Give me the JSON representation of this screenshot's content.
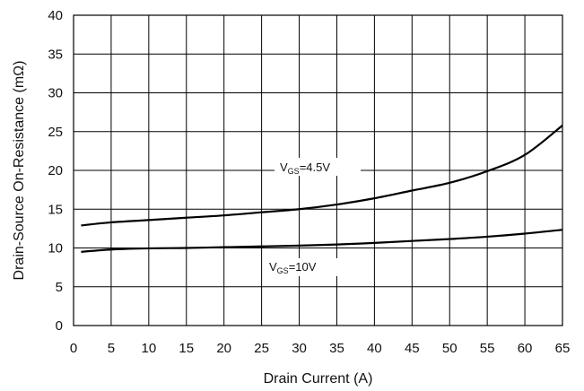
{
  "chart_data": {
    "type": "line",
    "xlabel": "Drain Current (A)",
    "ylabel": "Drain-Source On-Resistance (mΩ)",
    "xlim": [
      0,
      65
    ],
    "ylim": [
      0,
      40
    ],
    "x_ticks": [
      "0",
      "5",
      "10",
      "15",
      "20",
      "25",
      "30",
      "35",
      "40",
      "45",
      "50",
      "55",
      "60",
      "65"
    ],
    "y_ticks": [
      "0",
      "5",
      "10",
      "15",
      "20",
      "25",
      "30",
      "35",
      "40"
    ],
    "grid": true,
    "series": [
      {
        "annotation": {
          "prefix": "V",
          "sub": "GS",
          "suffix": "=4.5V"
        },
        "x": [
          1,
          5,
          10,
          15,
          20,
          25,
          30,
          35,
          40,
          45,
          50,
          55,
          60,
          65
        ],
        "y": [
          12.9,
          13.3,
          13.6,
          13.9,
          14.2,
          14.6,
          15.0,
          15.6,
          16.4,
          17.4,
          18.4,
          19.9,
          22.0,
          25.8
        ]
      },
      {
        "annotation": {
          "prefix": "V",
          "sub": "GS",
          "suffix": "=10V"
        },
        "x": [
          1,
          5,
          10,
          15,
          20,
          25,
          30,
          35,
          40,
          45,
          50,
          55,
          60,
          65
        ],
        "y": [
          9.5,
          9.8,
          9.95,
          10.0,
          10.1,
          10.2,
          10.3,
          10.45,
          10.65,
          10.9,
          11.15,
          11.45,
          11.85,
          12.35
        ]
      }
    ],
    "colors": {
      "line": "#000000",
      "grid": "#000000",
      "background": "#ffffff"
    }
  }
}
